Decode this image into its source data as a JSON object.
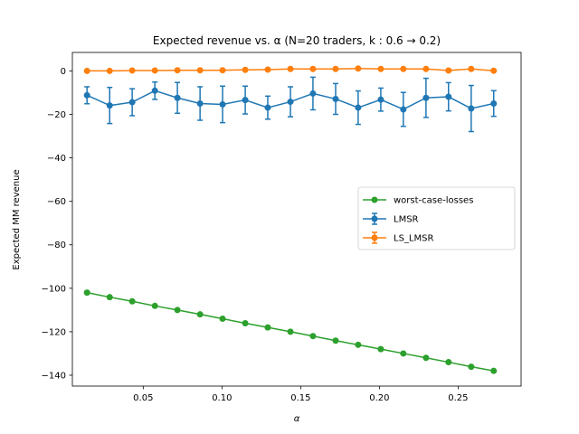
{
  "chart_data": {
    "type": "line",
    "title": "Expected revenue vs. α (N=20 traders, k : 0.6 → 0.2)",
    "xlabel": "α",
    "ylabel": "Expected MM revenue",
    "xlim": [
      0.005,
      0.29
    ],
    "ylim": [
      -145,
      8.5
    ],
    "xticks": [
      0.05,
      0.1,
      0.15,
      0.2,
      0.25
    ],
    "xtick_labels": [
      "0.05",
      "0.10",
      "0.15",
      "0.20",
      "0.25"
    ],
    "yticks": [
      0,
      -20,
      -40,
      -60,
      -80,
      -100,
      -120,
      -140
    ],
    "ytick_labels": [
      "0",
      "−20",
      "−40",
      "−60",
      "−80",
      "−100",
      "−120",
      "−140"
    ],
    "grid": false,
    "legend_position": "center-right",
    "x": [
      0.0143,
      0.0287,
      0.043,
      0.0574,
      0.0717,
      0.0861,
      0.1004,
      0.1148,
      0.1291,
      0.1435,
      0.1578,
      0.1722,
      0.1865,
      0.2009,
      0.2152,
      0.2296,
      0.2439,
      0.2583,
      0.2726
    ],
    "series": [
      {
        "name": "worst-case-losses",
        "color": "#2ca02c",
        "marker": "circle",
        "values": [
          -102.0,
          -104.1,
          -106.0,
          -108.1,
          -110.0,
          -112.0,
          -114.0,
          -116.1,
          -118.0,
          -120.0,
          -122.0,
          -124.1,
          -126.0,
          -128.0,
          -130.0,
          -132.0,
          -134.0,
          -136.1,
          -138.0
        ]
      },
      {
        "name": "LMSR",
        "color": "#1f77b4",
        "marker": "circle",
        "values": [
          -11.2,
          -15.9,
          -14.4,
          -9.1,
          -12.4,
          -15.0,
          -15.4,
          -13.4,
          -16.9,
          -14.2,
          -10.4,
          -12.9,
          -16.9,
          -13.2,
          -17.7,
          -12.4,
          -11.9,
          -17.3,
          -15.0
        ],
        "errors": [
          3.9,
          8.3,
          6.2,
          4.0,
          7.1,
          7.7,
          8.4,
          6.4,
          5.3,
          6.9,
          7.5,
          7.1,
          7.7,
          5.3,
          7.8,
          9.0,
          6.5,
          10.6,
          5.9
        ]
      },
      {
        "name": "LS_LMSR",
        "color": "#ff7f0e",
        "marker": "circle",
        "values": [
          0.0,
          0.0,
          0.2,
          0.2,
          0.3,
          0.3,
          0.3,
          0.5,
          0.6,
          0.9,
          0.9,
          0.9,
          1.1,
          0.9,
          0.9,
          0.9,
          0.2,
          0.9,
          0.1
        ],
        "errors": [
          0.3,
          0.3,
          0.3,
          0.3,
          0.3,
          0.3,
          0.3,
          0.3,
          0.3,
          0.3,
          0.3,
          0.3,
          0.3,
          0.3,
          0.3,
          0.3,
          0.6,
          0.3,
          0.3
        ]
      }
    ]
  }
}
